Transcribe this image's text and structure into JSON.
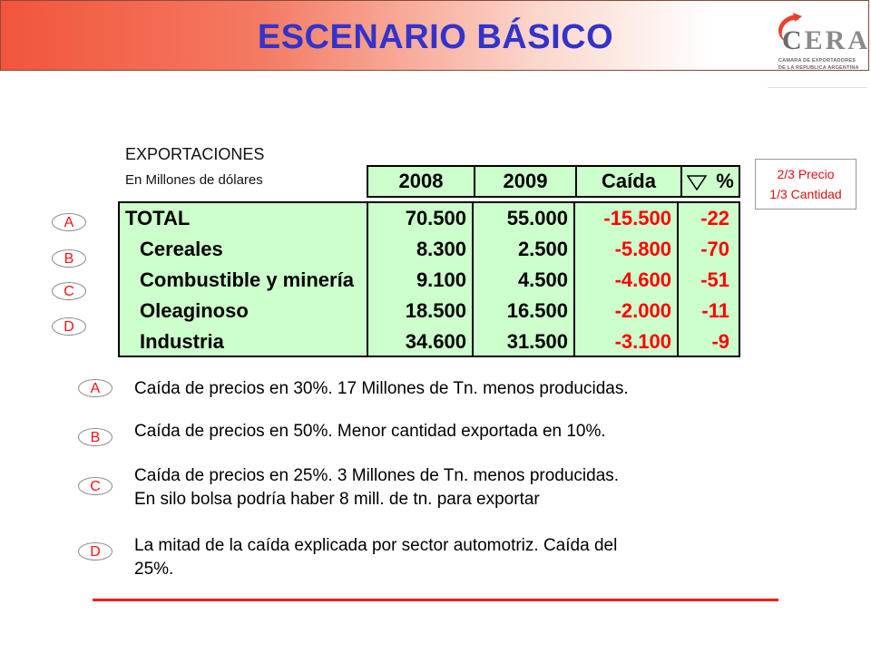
{
  "header": {
    "title": "ESCENARIO BÁSICO",
    "logo": {
      "word_c": "C",
      "word_rest": "ERA",
      "sub1": "CAMARA DE EXPORTADORES",
      "sub2": "DE LA REPUBLICA ARGENTINA"
    }
  },
  "section": {
    "title": "EXPORTACIONES",
    "subtitle": "En Millones de dólares"
  },
  "note": {
    "line1": "2/3 Precio",
    "line2": "1/3 Cantidad"
  },
  "table": {
    "columns": [
      "2008",
      "2009",
      "Caída",
      "%"
    ],
    "delta_symbol": "triangle-down-icon",
    "rows": [
      {
        "label": "TOTAL",
        "v2008": "70.500",
        "v2009": "55.000",
        "caida": "-15.500",
        "pct": "-22"
      },
      {
        "label": "Cereales",
        "v2008": "8.300",
        "v2009": "2.500",
        "caida": "-5.800",
        "pct": "-70"
      },
      {
        "label": "Combustible y minería",
        "v2008": "9.100",
        "v2009": "4.500",
        "caida": "-4.600",
        "pct": "-51"
      },
      {
        "label": "Oleaginoso",
        "v2008": "18.500",
        "v2009": "16.500",
        "caida": "-2.000",
        "pct": "-11"
      },
      {
        "label": "Industria",
        "v2008": "34.600",
        "v2009": "31.500",
        "caida": "-3.100",
        "pct": "-9"
      }
    ]
  },
  "side_badges": [
    "A",
    "B",
    "C",
    "D"
  ],
  "explanations": [
    {
      "badge": "A",
      "line1": "Caída de precios en 30%. 17 Millones de Tn. menos producidas.",
      "line2": ""
    },
    {
      "badge": "B",
      "line1": "Caída de precios en 50%. Menor cantidad exportada en 10%.",
      "line2": ""
    },
    {
      "badge": "C",
      "line1": "Caída de precios en 25%. 3 Millones de Tn. menos producidas.",
      "line2": "En silo bolsa podría haber 8 mill. de tn. para exportar"
    },
    {
      "badge": "D",
      "line1": "La mitad de la caída explicada por sector automotriz. Caída del",
      "line2": "25%."
    }
  ],
  "colors": {
    "title": "#3333cc",
    "table_bg": "#ccffcc",
    "negative": "#ff0000",
    "badge_text": "#ff1010",
    "rule": "#ee1c1c"
  }
}
